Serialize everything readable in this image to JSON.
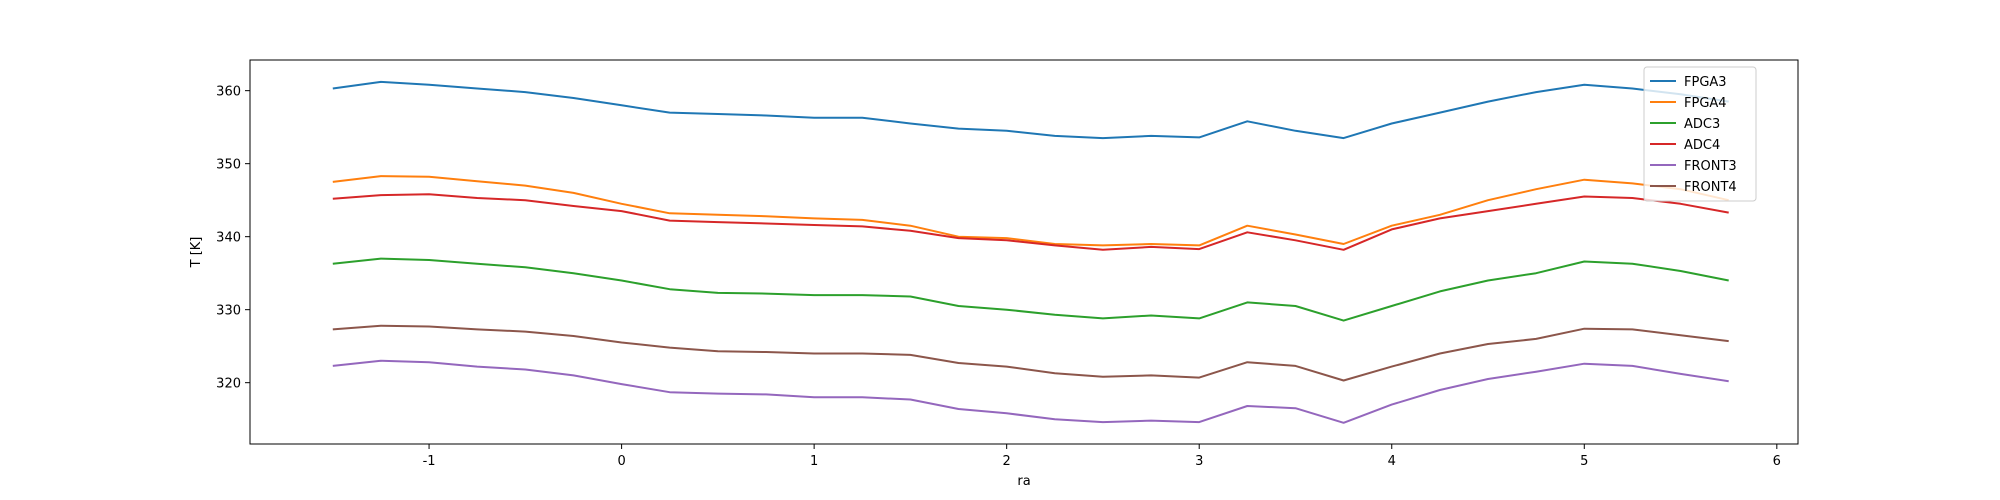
{
  "chart_data": {
    "type": "line",
    "x_label": "ra",
    "y_label": "T [K]",
    "x": [
      -1.5,
      -1.25,
      -1,
      -0.75,
      -0.5,
      -0.25,
      0,
      0.25,
      0.5,
      0.75,
      1,
      1.25,
      1.5,
      1.75,
      2,
      2.25,
      2.5,
      2.75,
      3,
      3.25,
      3.5,
      3.75,
      4,
      4.25,
      4.5,
      4.75,
      5,
      5.25,
      5.5,
      5.75
    ],
    "series": [
      {
        "name": "FPGA3",
        "color": "#1f77b4",
        "values": [
          360.3,
          361.2,
          360.8,
          360.3,
          359.8,
          359,
          358,
          357,
          356.8,
          356.6,
          356.3,
          356.3,
          355.5,
          354.8,
          354.5,
          353.8,
          353.5,
          353.8,
          353.6,
          355.8,
          354.5,
          353.5,
          355.5,
          357,
          358.5,
          359.8,
          360.8,
          360.3,
          359.5,
          358.5
        ]
      },
      {
        "name": "FPGA4",
        "color": "#ff7f0e",
        "values": [
          347.5,
          348.3,
          348.2,
          347.6,
          347,
          346,
          344.5,
          343.2,
          343,
          342.8,
          342.5,
          342.3,
          341.5,
          340,
          339.8,
          339,
          338.8,
          339,
          338.8,
          341.5,
          340.3,
          339,
          341.5,
          343,
          345,
          346.5,
          347.8,
          347.3,
          346.5,
          345
        ]
      },
      {
        "name": "ADC3",
        "color": "#2ca02c",
        "values": [
          336.3,
          337,
          336.8,
          336.3,
          335.8,
          335,
          334,
          332.8,
          332.3,
          332.2,
          332,
          332,
          331.8,
          330.5,
          330,
          329.3,
          328.8,
          329.2,
          328.8,
          331,
          330.5,
          328.5,
          330.5,
          332.5,
          334,
          335,
          336.6,
          336.3,
          335.3,
          334
        ]
      },
      {
        "name": "ADC4",
        "color": "#d62728",
        "values": [
          345.2,
          345.7,
          345.8,
          345.3,
          345,
          344.2,
          343.5,
          342.2,
          342,
          341.8,
          341.6,
          341.4,
          340.8,
          339.8,
          339.5,
          338.8,
          338.2,
          338.6,
          338.3,
          340.6,
          339.5,
          338.2,
          341,
          342.5,
          343.5,
          344.5,
          345.5,
          345.3,
          344.5,
          343.3
        ]
      },
      {
        "name": "FRONT3",
        "color": "#9467bd",
        "values": [
          322.3,
          323,
          322.8,
          322.2,
          321.8,
          321,
          319.8,
          318.7,
          318.5,
          318.4,
          318,
          318,
          317.7,
          316.4,
          315.8,
          315,
          314.6,
          314.8,
          314.6,
          316.8,
          316.5,
          314.5,
          317,
          319,
          320.5,
          321.5,
          322.6,
          322.3,
          321.2,
          320.2
        ]
      },
      {
        "name": "FRONT4",
        "color": "#8c564b",
        "values": [
          327.3,
          327.8,
          327.7,
          327.3,
          327,
          326.4,
          325.5,
          324.8,
          324.3,
          324.2,
          324,
          324,
          323.8,
          322.7,
          322.2,
          321.3,
          320.8,
          321,
          320.7,
          322.8,
          322.3,
          320.3,
          322.2,
          324,
          325.3,
          326,
          327.4,
          327.3,
          326.5,
          325.7
        ]
      }
    ],
    "xlim": [
      -1.93,
      6.11
    ],
    "xticks": [
      -1,
      0,
      1,
      2,
      3,
      4,
      5,
      6
    ],
    "ylim": [
      311.6,
      364.2
    ],
    "yticks": [
      320,
      330,
      340,
      350,
      360
    ],
    "legend": "upper right",
    "grid": false
  }
}
